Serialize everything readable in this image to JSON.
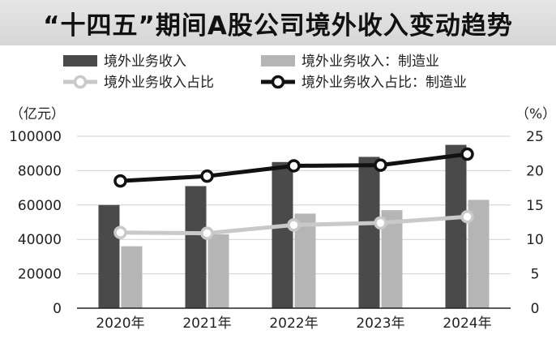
{
  "chart_data": {
    "type": "bar",
    "title": "“十四五”期间A股公司境外收入变动趋势",
    "y_unit_left": "（亿元）",
    "y_unit_right": "（%）",
    "categories": [
      "2020年",
      "2021年",
      "2022年",
      "2023年",
      "2024年"
    ],
    "left_axis": {
      "min": 0,
      "max": 100000,
      "ticks": [
        "0",
        "20000",
        "40000",
        "60000",
        "80000",
        "100000"
      ]
    },
    "right_axis": {
      "min": 0,
      "max": 25,
      "ticks": [
        "0",
        "5",
        "10",
        "15",
        "20",
        "25"
      ]
    },
    "grid": true,
    "legend_position": "top",
    "series": [
      {
        "name": "境外业务收入",
        "kind": "bar",
        "axis": "left",
        "color": "#4a4a4a",
        "values": [
          60000,
          71000,
          85000,
          88000,
          95000
        ]
      },
      {
        "name": "境外业务收入：制造业",
        "kind": "bar",
        "axis": "left",
        "color": "#b5b5b5",
        "values": [
          36000,
          43000,
          55000,
          57000,
          63000
        ]
      },
      {
        "name": "境外业务收入占比",
        "kind": "line",
        "axis": "right",
        "color": "#c9c9c9",
        "values": [
          11.0,
          10.9,
          12.1,
          12.4,
          13.3
        ]
      },
      {
        "name": "境外业务收入占比：制造业",
        "kind": "line",
        "axis": "right",
        "color": "#111111",
        "values": [
          18.5,
          19.2,
          20.7,
          20.8,
          22.4
        ]
      }
    ]
  }
}
